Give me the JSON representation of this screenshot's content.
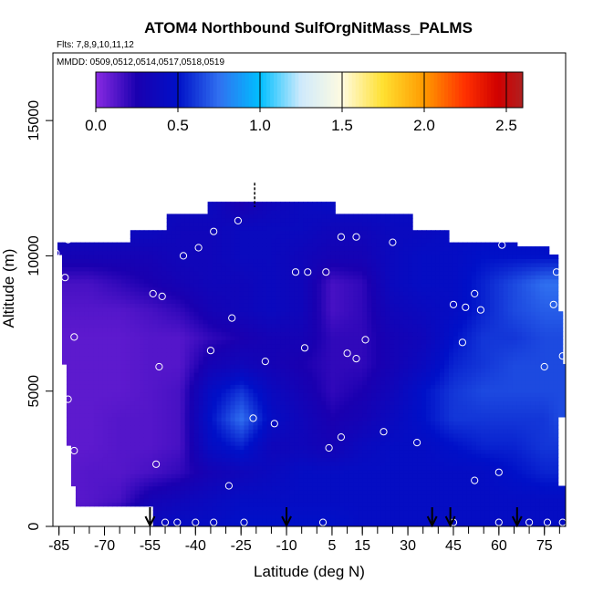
{
  "chart_data": {
    "type": "heatmap",
    "title": "ATOM4 Northbound SulfOrgNitMass_PALMS",
    "subtitle_lines": [
      "Flts: 7,8,9,10,11,12",
      "MMDD: 0509,0512,0514,0517,0518,0519"
    ],
    "xlabel": "Latitude (deg N)",
    "ylabel": "Altitude (m)",
    "xlim": [
      -87,
      82
    ],
    "ylim": [
      0,
      17500
    ],
    "x_ticks": [
      -85,
      -70,
      -55,
      -40,
      -25,
      -10,
      5,
      15,
      30,
      45,
      60,
      75
    ],
    "y_ticks": [
      0,
      5000,
      10000,
      15000
    ],
    "colorbar": {
      "label_ticks": [
        "0.0",
        "0.5",
        "1.0",
        "1.5",
        "2.0",
        "2.5"
      ],
      "tick_values": [
        0,
        0.5,
        1.0,
        1.5,
        2.0,
        2.5
      ],
      "range": [
        0,
        2.6
      ],
      "stops": [
        {
          "v": 0.0,
          "c": "#8a2be2"
        },
        {
          "v": 0.25,
          "c": "#1a00b0"
        },
        {
          "v": 0.5,
          "c": "#0010c8"
        },
        {
          "v": 0.75,
          "c": "#3070f0"
        },
        {
          "v": 1.0,
          "c": "#00bfff"
        },
        {
          "v": 1.25,
          "c": "#cfeafc"
        },
        {
          "v": 1.5,
          "c": "#fffbe0"
        },
        {
          "v": 1.75,
          "c": "#ffe030"
        },
        {
          "v": 2.0,
          "c": "#ff9a00"
        },
        {
          "v": 2.25,
          "c": "#ff3000"
        },
        {
          "v": 2.45,
          "c": "#d00000"
        },
        {
          "v": 2.6,
          "c": "#b02020"
        }
      ]
    },
    "grid_x": [
      -85,
      -75,
      -65,
      -55,
      -45,
      -35,
      -25,
      -15,
      -5,
      5,
      15,
      25,
      35,
      45,
      55,
      65,
      75,
      80
    ],
    "grid_y": [
      0,
      1000,
      2000,
      3000,
      4000,
      5000,
      6000,
      7000,
      8000,
      9000,
      10000,
      11000,
      12000
    ],
    "grid_values": [
      [
        0.15,
        0.15,
        0.3,
        0.4,
        0.45,
        0.45,
        0.5,
        0.5,
        0.5,
        0.5,
        0.45,
        0.45,
        0.45,
        0.45,
        0.45,
        0.45,
        0.45,
        0.45
      ],
      [
        0.1,
        0.12,
        0.15,
        0.3,
        0.35,
        0.4,
        0.45,
        0.45,
        0.45,
        0.45,
        0.45,
        0.45,
        0.45,
        0.45,
        0.45,
        0.45,
        0.45,
        0.45
      ],
      [
        0.1,
        0.12,
        0.12,
        0.15,
        0.2,
        0.3,
        0.35,
        0.4,
        0.45,
        0.45,
        0.45,
        0.45,
        0.45,
        0.45,
        0.45,
        0.5,
        0.55,
        0.55
      ],
      [
        0.1,
        0.1,
        0.12,
        0.12,
        0.15,
        0.45,
        0.55,
        0.35,
        0.35,
        0.3,
        0.4,
        0.45,
        0.45,
        0.5,
        0.55,
        0.55,
        0.6,
        0.6
      ],
      [
        0.1,
        0.1,
        0.12,
        0.12,
        0.15,
        0.5,
        0.75,
        0.45,
        0.35,
        0.25,
        0.3,
        0.4,
        0.5,
        0.6,
        0.6,
        0.6,
        0.6,
        0.65
      ],
      [
        0.1,
        0.1,
        0.1,
        0.12,
        0.15,
        0.45,
        0.6,
        0.4,
        0.3,
        0.2,
        0.25,
        0.35,
        0.5,
        0.6,
        0.65,
        0.65,
        0.65,
        0.65
      ],
      [
        0.1,
        0.1,
        0.1,
        0.12,
        0.12,
        0.3,
        0.35,
        0.3,
        0.25,
        0.2,
        0.2,
        0.3,
        0.4,
        0.55,
        0.6,
        0.65,
        0.65,
        0.65
      ],
      [
        0.1,
        0.1,
        0.1,
        0.12,
        0.12,
        0.2,
        0.25,
        0.3,
        0.3,
        0.2,
        0.2,
        0.3,
        0.35,
        0.5,
        0.6,
        0.6,
        0.65,
        0.65
      ],
      [
        0.12,
        0.12,
        0.12,
        0.15,
        0.2,
        0.3,
        0.35,
        0.4,
        0.35,
        0.15,
        0.2,
        0.35,
        0.4,
        0.45,
        0.55,
        0.65,
        0.7,
        0.7
      ],
      [
        0.15,
        0.15,
        0.2,
        0.25,
        0.3,
        0.35,
        0.35,
        0.4,
        0.35,
        0.15,
        0.2,
        0.4,
        0.45,
        0.45,
        0.55,
        0.65,
        0.75,
        0.75
      ],
      [
        0.3,
        0.3,
        0.3,
        0.3,
        0.35,
        0.35,
        0.4,
        0.4,
        0.35,
        0.3,
        0.3,
        0.4,
        0.45,
        0.45,
        0.5,
        0.5,
        0.5,
        0.5
      ],
      [
        0.4,
        0.4,
        0.4,
        0.4,
        0.35,
        0.35,
        0.4,
        0.4,
        0.4,
        0.35,
        0.35,
        0.4,
        0.4,
        0.45,
        0.45,
        0.45,
        0.45,
        0.45
      ],
      [
        0.4,
        0.4,
        0.4,
        0.4,
        0.4,
        0.4,
        0.25,
        0.35,
        0.4,
        0.45,
        0.45,
        0.45,
        0.45,
        0.45,
        0.45,
        0.45,
        0.45,
        0.45
      ]
    ],
    "coverage": [
      {
        "y0": 0,
        "y1": 700,
        "x0": -54,
        "x1": 82
      },
      {
        "y0": 700,
        "y1": 1500,
        "x0": -80,
        "x1": 82
      },
      {
        "y0": 1500,
        "y1": 3000,
        "x0": -81,
        "x1": 80
      },
      {
        "y0": 3000,
        "y1": 4000,
        "x0": -82,
        "x1": 80
      },
      {
        "y0": 4000,
        "y1": 6000,
        "x0": -83,
        "x1": 82
      },
      {
        "y0": 6000,
        "y1": 8000,
        "x0": -84,
        "x1": 81
      },
      {
        "y0": 8000,
        "y1": 10000,
        "x0": -84,
        "x1": 80
      },
      {
        "y0": 10000,
        "y1": 10300,
        "x0": -86,
        "x1": 77
      },
      {
        "y0": 10300,
        "y1": 10500,
        "x0": -86,
        "x1": 66
      },
      {
        "y0": 10500,
        "y1": 11000,
        "x0": -62,
        "x1": 44
      },
      {
        "y0": 11000,
        "y1": 11500,
        "x0": -50,
        "x1": 31
      },
      {
        "y0": 11500,
        "y1": 12000,
        "x0": -36,
        "x1": 6
      }
    ],
    "flight_points": [
      [
        -86,
        10100
      ],
      [
        -82,
        10600
      ],
      [
        -83,
        9200
      ],
      [
        -80,
        7000
      ],
      [
        -82,
        4700
      ],
      [
        -80,
        2800
      ],
      [
        -81,
        1300
      ],
      [
        -54,
        8600
      ],
      [
        -51,
        8500
      ],
      [
        -52,
        5900
      ],
      [
        -53,
        2300
      ],
      [
        -44,
        10000
      ],
      [
        -39,
        10300
      ],
      [
        -34,
        10900
      ],
      [
        -26,
        11300
      ],
      [
        -28,
        7700
      ],
      [
        -35,
        6500
      ],
      [
        -29,
        1500
      ],
      [
        -21,
        4000
      ],
      [
        -17,
        6100
      ],
      [
        -14,
        3800
      ],
      [
        -7,
        9400
      ],
      [
        -3,
        9400
      ],
      [
        -4,
        6600
      ],
      [
        3,
        9400
      ],
      [
        8,
        10700
      ],
      [
        13,
        10700
      ],
      [
        4,
        2900
      ],
      [
        10,
        6400
      ],
      [
        8,
        3300
      ],
      [
        13,
        6200
      ],
      [
        16,
        6900
      ],
      [
        22,
        3500
      ],
      [
        25,
        10500
      ],
      [
        33,
        3100
      ],
      [
        45,
        8200
      ],
      [
        49,
        8100
      ],
      [
        48,
        6800
      ],
      [
        52,
        8600
      ],
      [
        54,
        8000
      ],
      [
        52,
        1700
      ],
      [
        60,
        2000
      ],
      [
        61,
        10400
      ],
      [
        75,
        5900
      ],
      [
        78,
        8200
      ],
      [
        79,
        9400
      ],
      [
        82,
        9400
      ],
      [
        81,
        6300
      ],
      [
        -50,
        150
      ],
      [
        -46,
        150
      ],
      [
        -40,
        150
      ],
      [
        -34,
        150
      ],
      [
        -24,
        150
      ],
      [
        2,
        150
      ],
      [
        45,
        150
      ],
      [
        60,
        150
      ],
      [
        70,
        150
      ],
      [
        76,
        150
      ],
      [
        81,
        150
      ]
    ],
    "markers": {
      "down_arrows_x": [
        -55,
        -10,
        38,
        44,
        66
      ],
      "dashed_line": {
        "x": -20.5,
        "y0": 11800,
        "y1": 12700
      }
    }
  }
}
